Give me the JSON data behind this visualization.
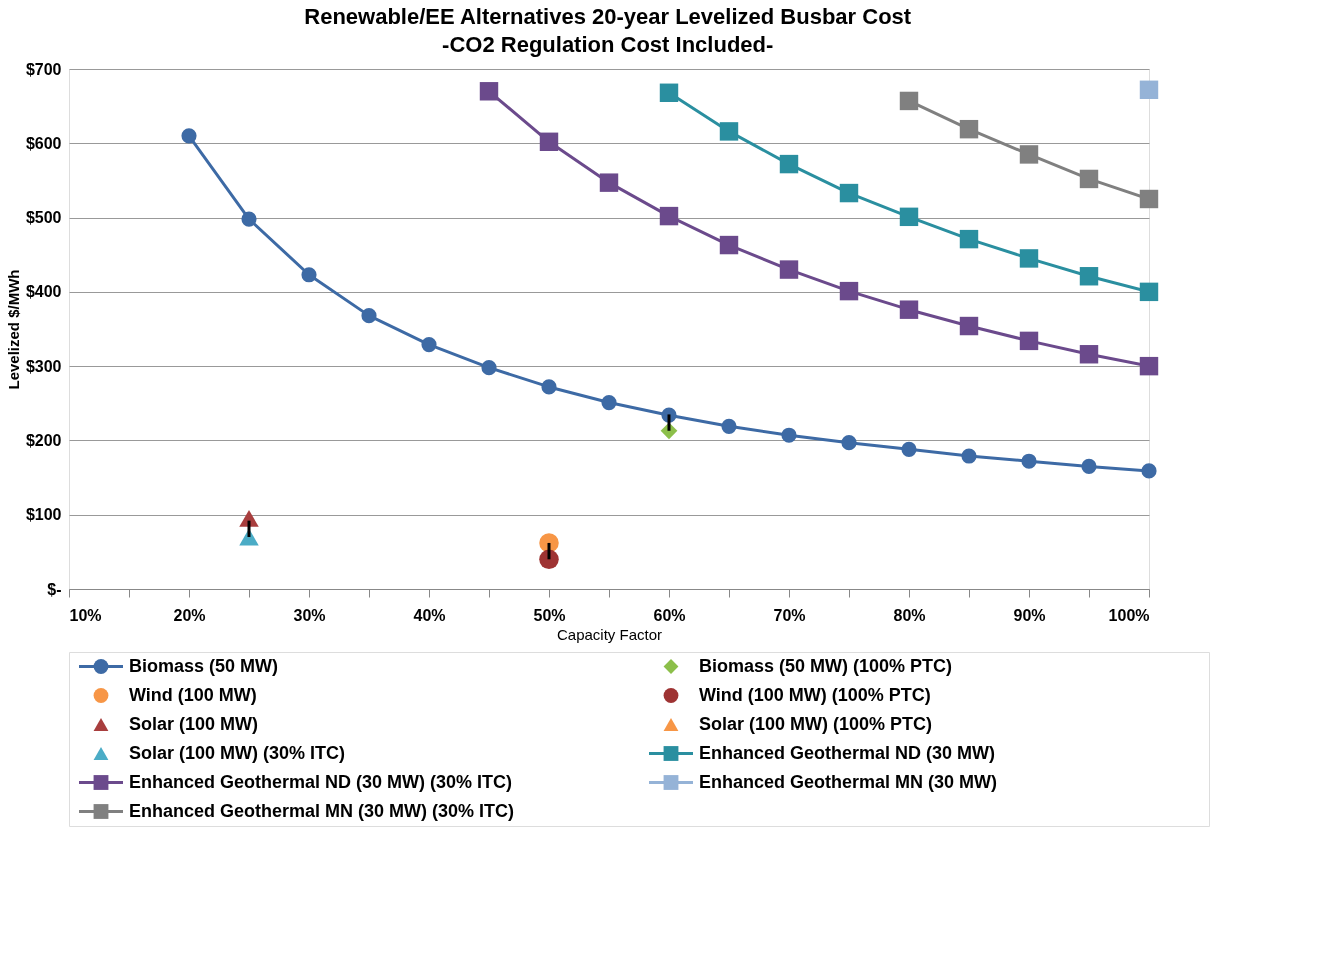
{
  "chart_data": {
    "type": "line",
    "title": "Renewable/EE Alternatives 20-year Levelized Busbar Cost",
    "subtitle": "-CO2 Regulation Cost Included-",
    "xlabel": "Capacity Factor",
    "ylabel": "Levelized $/MWh",
    "xlim": [
      10,
      100
    ],
    "ylim": [
      0,
      700
    ],
    "xticks": [
      {
        "value": 10,
        "label": "10%"
      },
      {
        "value": 15,
        "label": null
      },
      {
        "value": 20,
        "label": "20%"
      },
      {
        "value": 25,
        "label": null
      },
      {
        "value": 30,
        "label": "30%"
      },
      {
        "value": 35,
        "label": null
      },
      {
        "value": 40,
        "label": "40%"
      },
      {
        "value": 45,
        "label": null
      },
      {
        "value": 50,
        "label": "50%"
      },
      {
        "value": 55,
        "label": null
      },
      {
        "value": 60,
        "label": "60%"
      },
      {
        "value": 65,
        "label": null
      },
      {
        "value": 70,
        "label": "70%"
      },
      {
        "value": 75,
        "label": null
      },
      {
        "value": 80,
        "label": "80%"
      },
      {
        "value": 85,
        "label": null
      },
      {
        "value": 90,
        "label": "90%"
      },
      {
        "value": 95,
        "label": null
      },
      {
        "value": 100,
        "label": "100%"
      }
    ],
    "yticks": [
      {
        "value": 0,
        "label": "$-"
      },
      {
        "value": 100,
        "label": "$100"
      },
      {
        "value": 200,
        "label": "$200"
      },
      {
        "value": 300,
        "label": "$300"
      },
      {
        "value": 400,
        "label": "$400"
      },
      {
        "value": 500,
        "label": "$500"
      },
      {
        "value": 600,
        "label": "$600"
      },
      {
        "value": 700,
        "label": "$700"
      }
    ],
    "grid": "y",
    "legend": "bottom",
    "line_style": "solid",
    "series": [
      {
        "name": "Biomass (50 MW)",
        "marker": "circle",
        "color": "#3d6aa5",
        "x": [
          20,
          25,
          30,
          35,
          40,
          45,
          50,
          55,
          60,
          65,
          70,
          75,
          80,
          85,
          90,
          95,
          100
        ],
        "values": [
          610,
          498,
          423,
          368,
          329,
          298,
          272,
          251,
          234,
          219,
          207,
          197,
          188,
          179,
          172,
          165,
          159
        ]
      },
      {
        "name": "Biomass (50 MW) (100% PTC)",
        "type": "scatter",
        "marker": "diamond",
        "color": "#8cbf4a",
        "x": [
          60
        ],
        "values": [
          213
        ],
        "errors": [
          [
            213,
            235
          ]
        ]
      },
      {
        "name": "Wind (100 MW)",
        "type": "scatter",
        "marker": "circle",
        "color": "#f79646",
        "x": [
          50
        ],
        "values": [
          62
        ]
      },
      {
        "name": "Wind (100 MW) (100% PTC)",
        "type": "scatter",
        "marker": "circle",
        "color": "#9e3333",
        "x": [
          50
        ],
        "values": [
          40
        ],
        "errors": [
          [
            40,
            62
          ]
        ]
      },
      {
        "name": "Solar (100 MW)",
        "type": "scatter",
        "marker": "triangle",
        "color": "#a83e3e",
        "x": [
          25
        ],
        "values": [
          95
        ]
      },
      {
        "name": "Solar (100 MW) (100% PTC)",
        "type": "scatter",
        "marker": "triangle",
        "color": "#f79646",
        "values": [
          null
        ]
      },
      {
        "name": "Solar (100 MW) (30% ITC)",
        "type": "scatter",
        "marker": "triangle",
        "color": "#4bacc6",
        "x": [
          25
        ],
        "values": [
          70
        ],
        "errors": [
          [
            70,
            92
          ]
        ]
      },
      {
        "name": "Enhanced Geothermal ND (30 MW)",
        "marker": "square",
        "color": "#2a8fa0",
        "x": [
          60,
          65,
          70,
          75,
          80,
          85,
          90,
          95,
          100
        ],
        "values": [
          668,
          616,
          572,
          533,
          501,
          471,
          445,
          421,
          400
        ]
      },
      {
        "name": "Enhanced Geothermal ND (30 MW) (30% ITC)",
        "marker": "square",
        "color": "#6b4a8c",
        "x": [
          45,
          50,
          55,
          60,
          65,
          70,
          75,
          80,
          85,
          90,
          95,
          100
        ],
        "values": [
          670,
          602,
          547,
          502,
          463,
          430,
          401,
          376,
          354,
          334,
          316,
          300
        ]
      },
      {
        "name": "Enhanced Geothermal MN (30 MW)",
        "marker": "square",
        "color": "#95b3d7",
        "x": [
          100
        ],
        "values": [
          672
        ]
      },
      {
        "name": "Enhanced Geothermal MN (30 MW) (30% ITC)",
        "marker": "square",
        "color": "#808080",
        "x": [
          80,
          85,
          90,
          95,
          100
        ],
        "values": [
          657,
          619,
          585,
          552,
          525
        ]
      }
    ]
  }
}
